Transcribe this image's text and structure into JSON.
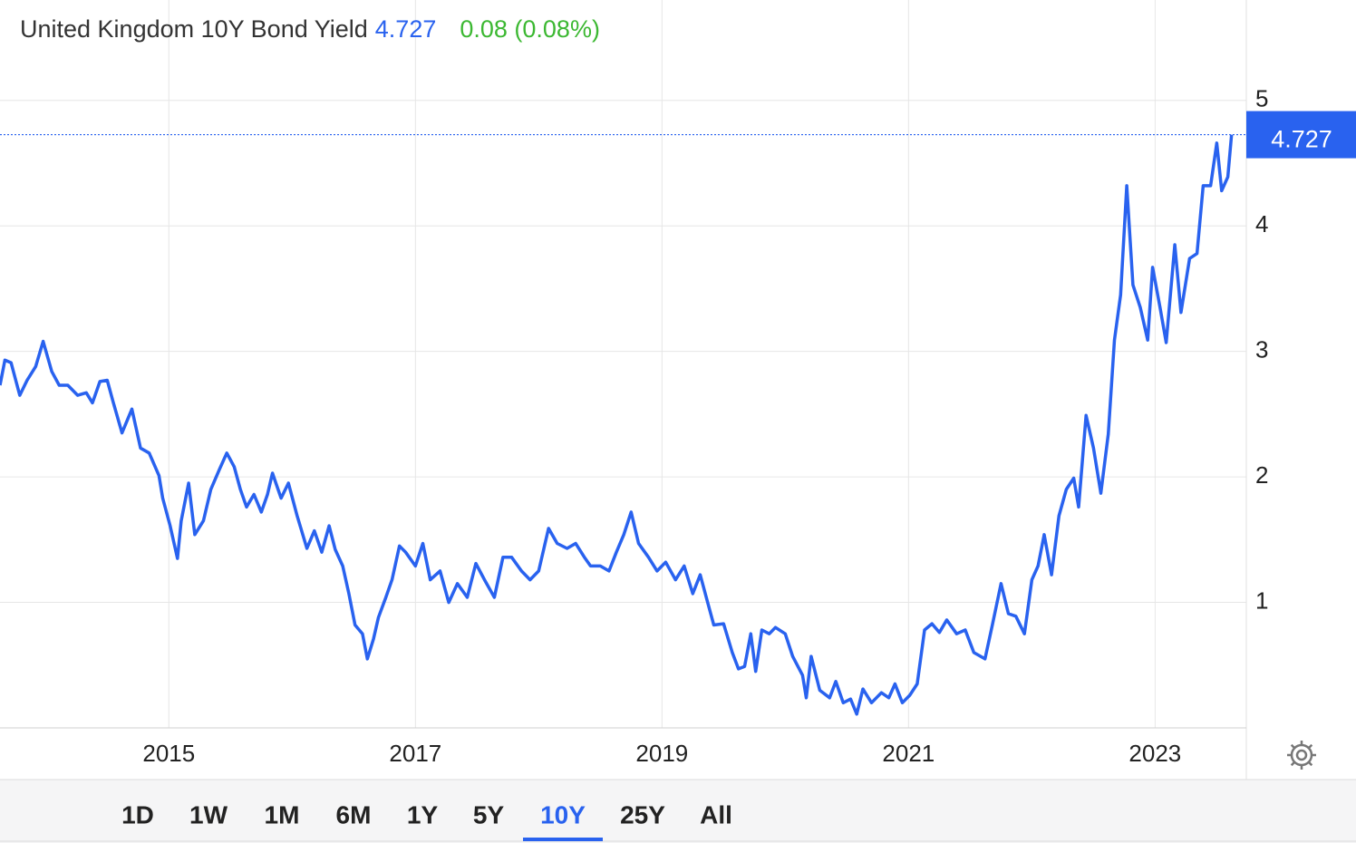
{
  "chart_data": {
    "type": "line",
    "title": "United Kingdom 10Y Bond Yield",
    "last_label": "4.727",
    "change_label": "0.08 (0.08%)",
    "color": "#2962ef",
    "grid": true,
    "xlim": [
      2013.63,
      2023.74
    ],
    "ylim": [
      0,
      5.8
    ],
    "xticks": [
      2015,
      2017,
      2019,
      2021,
      2023
    ],
    "yticks": [
      1,
      2,
      3,
      4,
      5
    ],
    "x": [
      2013.63,
      2013.67,
      2013.72,
      2013.79,
      2013.85,
      2013.92,
      2013.98,
      2014.05,
      2014.11,
      2014.18,
      2014.26,
      2014.33,
      2014.38,
      2014.44,
      2014.5,
      2014.55,
      2014.62,
      2014.7,
      2014.77,
      2014.84,
      2014.92,
      2014.95,
      2015.01,
      2015.07,
      2015.1,
      2015.16,
      2015.21,
      2015.28,
      2015.34,
      2015.41,
      2015.47,
      2015.53,
      2015.58,
      2015.63,
      2015.69,
      2015.75,
      2015.8,
      2015.84,
      2015.91,
      2015.97,
      2016.04,
      2016.12,
      2016.18,
      2016.24,
      2016.3,
      2016.35,
      2016.41,
      2016.46,
      2016.51,
      2016.57,
      2016.61,
      2016.66,
      2016.7,
      2016.76,
      2016.81,
      2016.87,
      2016.92,
      2017.0,
      2017.06,
      2017.12,
      2017.2,
      2017.27,
      2017.34,
      2017.42,
      2017.49,
      2017.56,
      2017.64,
      2017.71,
      2017.78,
      2017.86,
      2017.93,
      2018.0,
      2018.08,
      2018.15,
      2018.23,
      2018.3,
      2018.37,
      2018.42,
      2018.5,
      2018.57,
      2018.63,
      2018.69,
      2018.75,
      2018.81,
      2018.89,
      2018.96,
      2019.03,
      2019.11,
      2019.18,
      2019.25,
      2019.31,
      2019.37,
      2019.42,
      2019.5,
      2019.57,
      2019.62,
      2019.67,
      2019.72,
      2019.76,
      2019.81,
      2019.87,
      2019.92,
      2020.0,
      2020.06,
      2020.14,
      2020.17,
      2020.21,
      2020.28,
      2020.36,
      2020.41,
      2020.47,
      2020.53,
      2020.58,
      2020.63,
      2020.7,
      2020.78,
      2020.84,
      2020.89,
      2020.95,
      2021.01,
      2021.07,
      2021.13,
      2021.19,
      2021.25,
      2021.31,
      2021.39,
      2021.46,
      2021.53,
      2021.62,
      2021.68,
      2021.75,
      2021.81,
      2021.87,
      2021.94,
      2022.0,
      2022.05,
      2022.1,
      2022.16,
      2022.22,
      2022.28,
      2022.34,
      2022.38,
      2022.44,
      2022.5,
      2022.56,
      2022.62,
      2022.67,
      2022.72,
      2022.77,
      2022.82,
      2022.88,
      2022.94,
      2022.98,
      2023.04,
      2023.09,
      2023.16,
      2023.21,
      2023.28,
      2023.34,
      2023.39,
      2023.45,
      2023.5,
      2023.54,
      2023.59,
      2023.62
    ],
    "series": [
      {
        "name": "United Kingdom 10Y Bond Yield",
        "values": [
          2.73,
          2.93,
          2.91,
          2.65,
          2.77,
          2.88,
          3.08,
          2.84,
          2.73,
          2.73,
          2.65,
          2.67,
          2.59,
          2.76,
          2.77,
          2.59,
          2.35,
          2.54,
          2.23,
          2.19,
          2.01,
          1.83,
          1.61,
          1.35,
          1.65,
          1.95,
          1.54,
          1.65,
          1.9,
          2.06,
          2.19,
          2.08,
          1.9,
          1.76,
          1.86,
          1.72,
          1.86,
          2.03,
          1.83,
          1.95,
          1.69,
          1.43,
          1.57,
          1.4,
          1.61,
          1.42,
          1.29,
          1.07,
          0.82,
          0.75,
          0.55,
          0.71,
          0.88,
          1.04,
          1.18,
          1.45,
          1.4,
          1.29,
          1.47,
          1.18,
          1.25,
          1.0,
          1.15,
          1.04,
          1.31,
          1.18,
          1.04,
          1.36,
          1.36,
          1.25,
          1.18,
          1.25,
          1.59,
          1.47,
          1.43,
          1.47,
          1.36,
          1.29,
          1.29,
          1.25,
          1.4,
          1.54,
          1.72,
          1.47,
          1.36,
          1.25,
          1.32,
          1.18,
          1.29,
          1.07,
          1.22,
          1.0,
          0.82,
          0.83,
          0.6,
          0.47,
          0.49,
          0.75,
          0.45,
          0.78,
          0.75,
          0.8,
          0.75,
          0.57,
          0.42,
          0.24,
          0.57,
          0.3,
          0.24,
          0.37,
          0.2,
          0.23,
          0.11,
          0.31,
          0.2,
          0.28,
          0.24,
          0.35,
          0.2,
          0.26,
          0.35,
          0.78,
          0.83,
          0.76,
          0.86,
          0.75,
          0.78,
          0.6,
          0.55,
          0.82,
          1.15,
          0.91,
          0.89,
          0.75,
          1.18,
          1.29,
          1.54,
          1.22,
          1.69,
          1.9,
          1.99,
          1.76,
          2.49,
          2.23,
          1.87,
          2.34,
          3.09,
          3.45,
          4.32,
          3.53,
          3.35,
          3.09,
          3.67,
          3.35,
          3.07,
          3.85,
          3.31,
          3.74,
          3.78,
          4.32,
          4.32,
          4.66,
          4.28,
          4.39,
          4.727
        ]
      }
    ],
    "range_buttons": [
      "1D",
      "1W",
      "1M",
      "6M",
      "1Y",
      "5Y",
      "10Y",
      "25Y",
      "All"
    ],
    "active_range_index": 6
  }
}
